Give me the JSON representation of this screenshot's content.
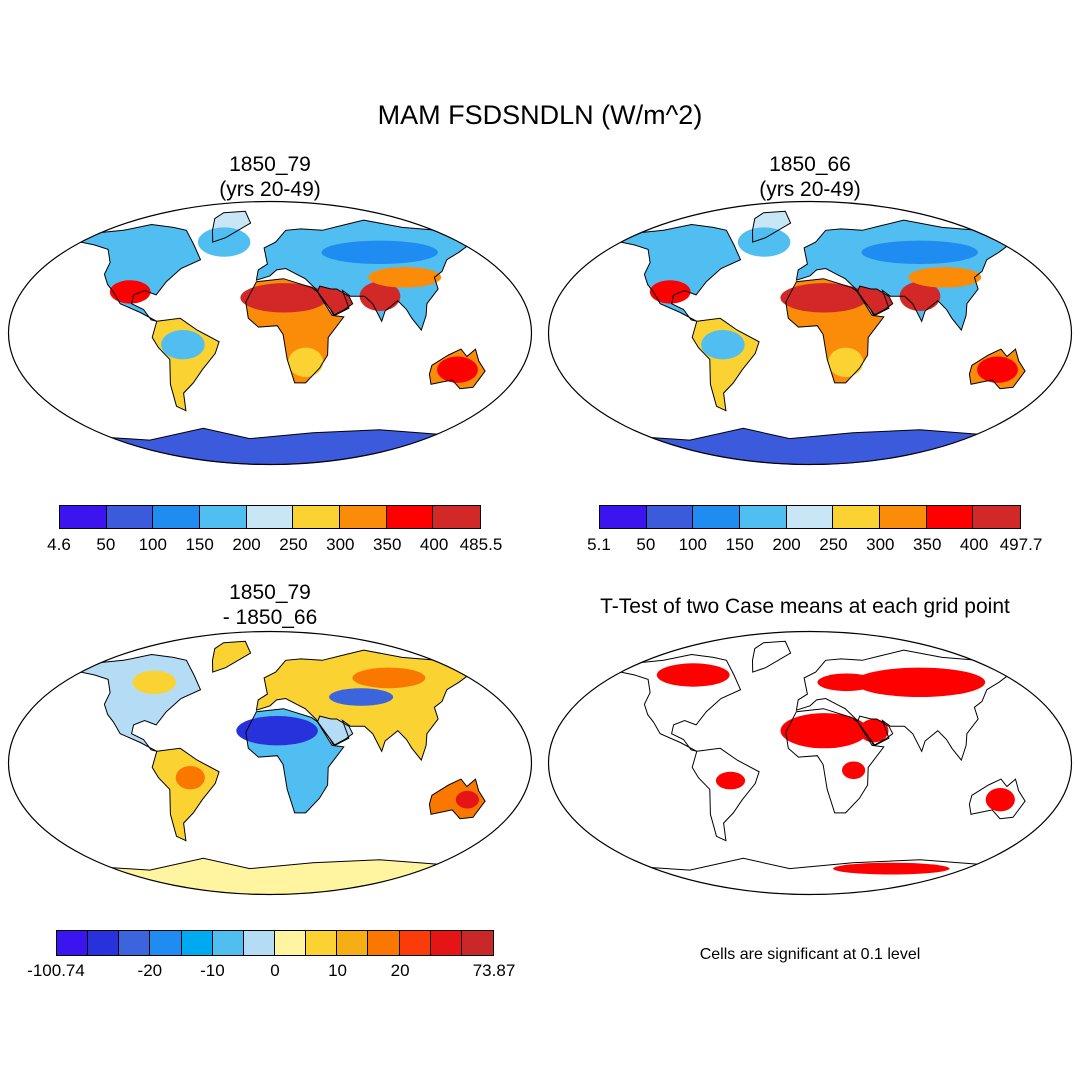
{
  "title": "MAM FSDSNDLN (W/m^2)",
  "panels": {
    "top_left": {
      "title_line1": "1850_79",
      "title_line2": "(yrs 20-49)"
    },
    "top_right": {
      "title_line1": "1850_66",
      "title_line2": "(yrs 20-49)"
    },
    "bottom_left": {
      "title_line1": "1850_79",
      "title_line2": "- 1850_66"
    },
    "bottom_right": {
      "title": "T-Test of two Case means at each grid point",
      "note": "Cells are significant at 0.1 level"
    }
  },
  "colorbars": {
    "top_left": {
      "colors": [
        "#3c14f0",
        "#3c5adc",
        "#1e8cf0",
        "#50bef0",
        "#c8e6f5",
        "#fad232",
        "#fa8c0a",
        "#ff0000",
        "#d22828"
      ],
      "labels": [
        "4.6",
        "50",
        "100",
        "150",
        "200",
        "250",
        "300",
        "350",
        "400",
        "485.5"
      ]
    },
    "top_right": {
      "colors": [
        "#3c14f0",
        "#3c5adc",
        "#1e8cf0",
        "#50bef0",
        "#c8e6f5",
        "#fad232",
        "#fa8c0a",
        "#ff0000",
        "#d22828"
      ],
      "labels": [
        "5.1",
        "50",
        "100",
        "150",
        "200",
        "250",
        "300",
        "350",
        "400",
        "497.7"
      ]
    },
    "bottom_left": {
      "colors": [
        "#3c14f0",
        "#2832dc",
        "#3c64dc",
        "#1e8cf0",
        "#00aaf0",
        "#50bef0",
        "#b4dcf5",
        "#fff5a0",
        "#fad232",
        "#f5af14",
        "#fa7800",
        "#fa3c0a",
        "#e61414",
        "#c82828"
      ],
      "labels": [
        {
          "text": "-100.74",
          "edge": 0
        },
        {
          "text": "-20",
          "edge": 3
        },
        {
          "text": "-10",
          "edge": 5
        },
        {
          "text": "0",
          "edge": 7
        },
        {
          "text": "10",
          "edge": 9
        },
        {
          "text": "20",
          "edge": 11
        },
        {
          "text": "73.87",
          "edge": 14
        }
      ]
    }
  },
  "colors": {
    "land_outline": "#000000",
    "ocean": "#ffffff",
    "significant": "#ff0000"
  }
}
